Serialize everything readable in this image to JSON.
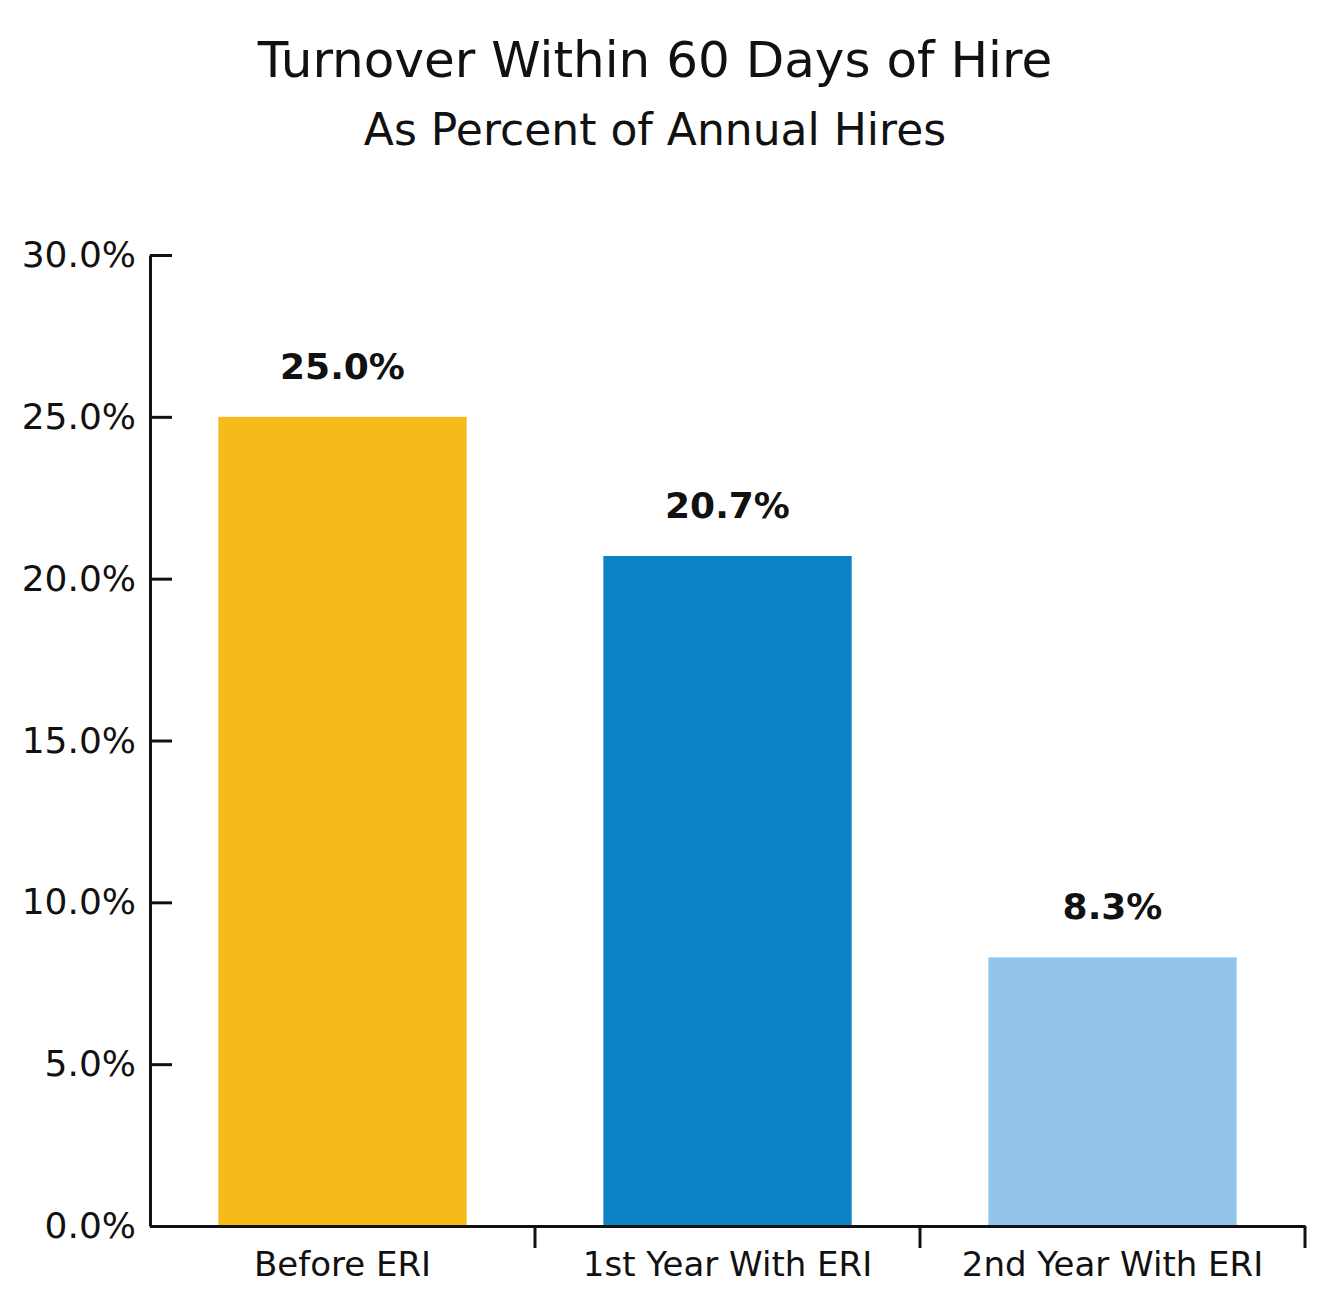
{
  "chart_data": {
    "type": "bar",
    "title": "Turnover Within 60 Days of Hire",
    "subtitle": "As Percent of Annual Hires",
    "categories": [
      "Before ERI",
      "1st Year With ERI",
      "2nd Year With ERI"
    ],
    "values": [
      25.0,
      20.7,
      8.3
    ],
    "value_labels": [
      "25.0%",
      "20.7%",
      "8.3%"
    ],
    "colors": [
      "#f5bb1a",
      "#0c81c4",
      "#93c5ea"
    ],
    "data_labels": true,
    "ylim": [
      0,
      30
    ],
    "yticks": [
      {
        "value": 0,
        "label": "0.0%"
      },
      {
        "value": 5,
        "label": "5.0%"
      },
      {
        "value": 10,
        "label": "10.0%"
      },
      {
        "value": 15,
        "label": "15.0%"
      },
      {
        "value": 20,
        "label": "20.0%"
      },
      {
        "value": 25,
        "label": "25.0%"
      },
      {
        "value": 30,
        "label": "30.0%"
      }
    ],
    "grid": false
  }
}
